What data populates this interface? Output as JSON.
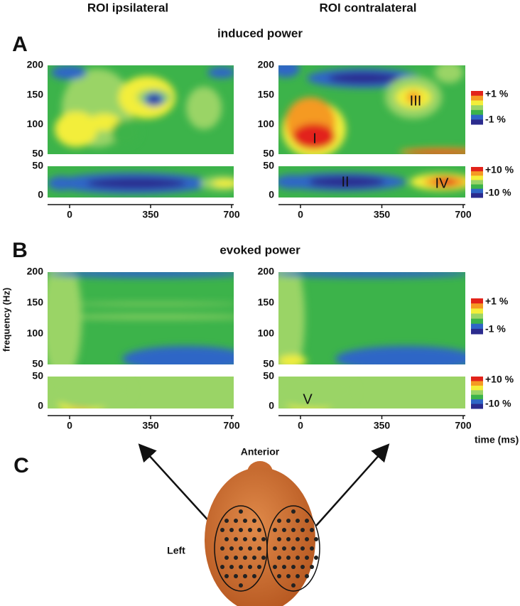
{
  "header": {
    "columns": [
      "ROI ipsilateral",
      "ROI contralateral"
    ]
  },
  "panels": [
    {
      "letter": "A",
      "title": "induced power",
      "upper_yticks": [
        200,
        150,
        100,
        50
      ],
      "lower_yticks": [
        50,
        0
      ],
      "xticks": [
        0,
        350,
        700
      ],
      "colorbar_upper": [
        "+1 %",
        "-1 %"
      ],
      "colorbar_lower": [
        "+10 %",
        "-10 %"
      ],
      "annotations": [
        "I",
        "III",
        "II",
        "IV"
      ]
    },
    {
      "letter": "B",
      "title": "evoked power",
      "upper_yticks": [
        200,
        150,
        100,
        50
      ],
      "lower_yticks": [
        50,
        0
      ],
      "xticks": [
        0,
        350,
        700
      ],
      "colorbar_upper": [
        "+1 %",
        "-1 %"
      ],
      "colorbar_lower": [
        "+10 %",
        "-10 %"
      ],
      "annotations": [
        "V"
      ],
      "y_label": "frequency (Hz)",
      "x_label": "time (ms)"
    },
    {
      "letter": "C",
      "labels": [
        "Anterior",
        "Left"
      ]
    }
  ]
}
